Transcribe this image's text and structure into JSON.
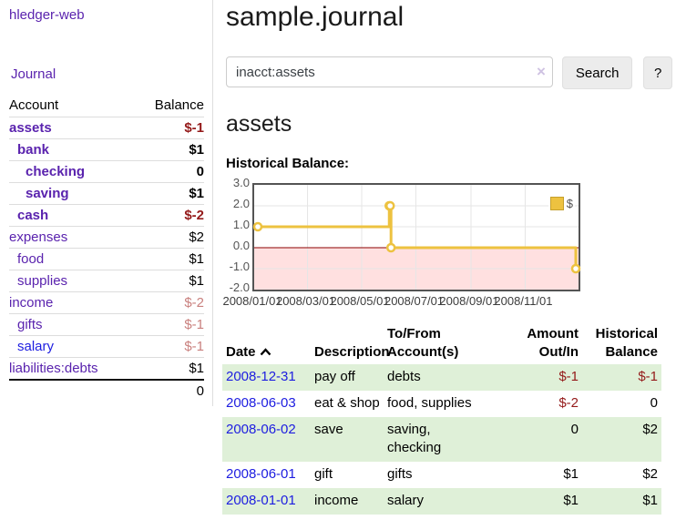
{
  "app": {
    "title": "hledger-web"
  },
  "sidebar": {
    "journal_label": "Journal",
    "headers": {
      "account": "Account",
      "balance": "Balance"
    },
    "accounts": [
      {
        "name": "assets",
        "balance": "$-1"
      },
      {
        "name": "bank",
        "balance": "$1"
      },
      {
        "name": "checking",
        "balance": "0"
      },
      {
        "name": "saving",
        "balance": "$1"
      },
      {
        "name": "cash",
        "balance": "$-2"
      },
      {
        "name": "expenses",
        "balance": "$2"
      },
      {
        "name": "food",
        "balance": "$1"
      },
      {
        "name": "supplies",
        "balance": "$1"
      },
      {
        "name": "income",
        "balance": "$-2"
      },
      {
        "name": "gifts",
        "balance": "$-1"
      },
      {
        "name": "salary",
        "balance": "$-1"
      },
      {
        "name": "liabilities:debts",
        "balance": "$1"
      }
    ],
    "total": "0"
  },
  "header": {
    "title": "sample.journal"
  },
  "search": {
    "value": "inacct:assets",
    "clear_icon": "×",
    "button_label": "Search",
    "help_label": "?"
  },
  "main": {
    "account_heading": "assets",
    "chart_label": "Historical Balance:"
  },
  "chart_data": {
    "type": "line",
    "step": true,
    "title": "Historical Balance",
    "series": [
      {
        "name": "$",
        "points": [
          [
            "2008-01-01",
            1
          ],
          [
            "2008-06-01",
            2
          ],
          [
            "2008-06-02",
            2
          ],
          [
            "2008-06-03",
            0
          ],
          [
            "2008-12-31",
            -1
          ]
        ]
      }
    ],
    "xlim": [
      "2008-01-01",
      "2008-12-31"
    ],
    "ylim": [
      -2,
      3
    ],
    "yticks": [
      {
        "value": 3,
        "label": "3.0"
      },
      {
        "value": 2,
        "label": "2.0"
      },
      {
        "value": 1,
        "label": "1.0"
      },
      {
        "value": 0,
        "label": "0.0"
      },
      {
        "value": -1,
        "label": "-1.0"
      },
      {
        "value": -2,
        "label": "-2.0"
      }
    ],
    "xticks": [
      {
        "date": "2008-01-01",
        "label": "2008/01/01"
      },
      {
        "date": "2008-03-01",
        "label": "2008/03/01"
      },
      {
        "date": "2008-05-01",
        "label": "2008/05/01"
      },
      {
        "date": "2008-07-01",
        "label": "2008/07/01"
      },
      {
        "date": "2008-09-01",
        "label": "2008/09/01"
      },
      {
        "date": "2008-11-01",
        "label": "2008/11/01"
      }
    ],
    "legend": {
      "position": "top-right",
      "label": "$"
    },
    "colors": {
      "line": "#edc240",
      "zero_line": "#8b0000",
      "negative_region": "rgba(255,0,0,0.12)",
      "grid": "#e6e6e6",
      "border": "#545454"
    }
  },
  "register": {
    "headers": {
      "date": "Date",
      "description": "Description",
      "tofrom": "To/From\nAccount(s)",
      "amount": "Amount\nOut/In",
      "balance": "Historical\nBalance"
    },
    "rows": [
      {
        "date": "2008-12-31",
        "description": "pay off",
        "tofrom": "debts",
        "amount": "$-1",
        "balance": "$-1"
      },
      {
        "date": "2008-06-03",
        "description": "eat & shop",
        "tofrom": "food, supplies",
        "amount": "$-2",
        "balance": "0"
      },
      {
        "date": "2008-06-02",
        "description": "save",
        "tofrom": "saving,\nchecking",
        "amount": "0",
        "balance": "$2"
      },
      {
        "date": "2008-06-01",
        "description": "gift",
        "tofrom": "gifts",
        "amount": "$1",
        "balance": "$2"
      },
      {
        "date": "2008-01-01",
        "description": "income",
        "tofrom": "salary",
        "amount": "$1",
        "balance": "$1"
      }
    ]
  }
}
